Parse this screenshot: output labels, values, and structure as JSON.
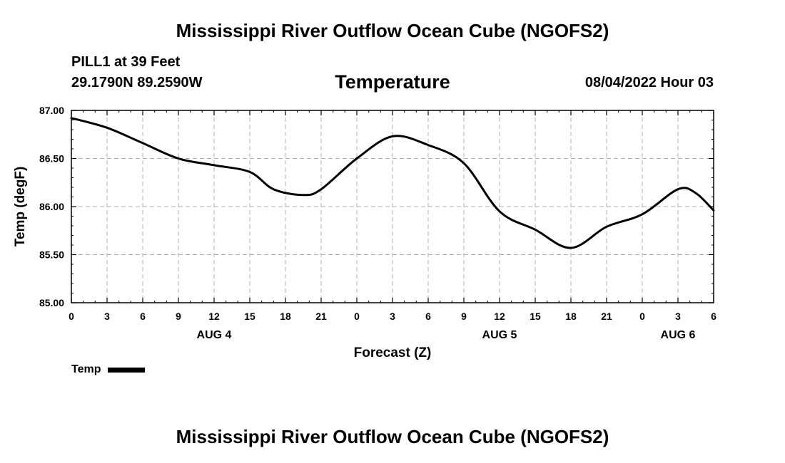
{
  "header": {
    "title": "Mississippi River Outflow Ocean Cube (NGOFS2)",
    "station": "PILL1 at 39 Feet",
    "coords": "29.1790N  89.2590W",
    "panel_title": "Temperature",
    "date": "08/04/2022 Hour 03"
  },
  "legend": {
    "label": "Temp"
  },
  "footer": {
    "title": "Mississippi River Outflow Ocean Cube (NGOFS2)"
  },
  "chart_data": {
    "type": "line",
    "title": "Temperature",
    "xlabel": "Forecast (Z)",
    "ylabel": "Temp (degF)",
    "ylim": [
      85.0,
      87.0
    ],
    "xlim": [
      0,
      54
    ],
    "grid": true,
    "y_ticks": [
      85.0,
      85.5,
      86.0,
      86.5,
      87.0
    ],
    "y_tick_labels": [
      "85.00",
      "85.50",
      "86.00",
      "86.50",
      "87.00"
    ],
    "x_ticks": [
      0,
      3,
      6,
      9,
      12,
      15,
      18,
      21,
      24,
      27,
      30,
      33,
      36,
      39,
      42,
      45,
      48,
      51,
      54
    ],
    "x_tick_labels": [
      "0",
      "3",
      "6",
      "9",
      "12",
      "15",
      "18",
      "21",
      "0",
      "3",
      "6",
      "9",
      "12",
      "15",
      "18",
      "21",
      "0",
      "3",
      "6"
    ],
    "day_labels": [
      {
        "hour": 12,
        "label": "AUG 4"
      },
      {
        "hour": 36,
        "label": "AUG 5"
      },
      {
        "hour": 51,
        "label": "AUG 6"
      }
    ],
    "series": [
      {
        "name": "Temp",
        "color": "#000000",
        "x": [
          0,
          3,
          6,
          9,
          12,
          15,
          17,
          19.5,
          21,
          24,
          27,
          30,
          33,
          36,
          39,
          42,
          45,
          48,
          51,
          52.5,
          54
        ],
        "values": [
          86.92,
          86.82,
          86.66,
          86.5,
          86.43,
          86.36,
          86.18,
          86.12,
          86.18,
          86.5,
          86.73,
          86.64,
          86.45,
          85.95,
          85.76,
          85.57,
          85.79,
          85.92,
          86.18,
          86.14,
          85.96
        ]
      }
    ]
  }
}
